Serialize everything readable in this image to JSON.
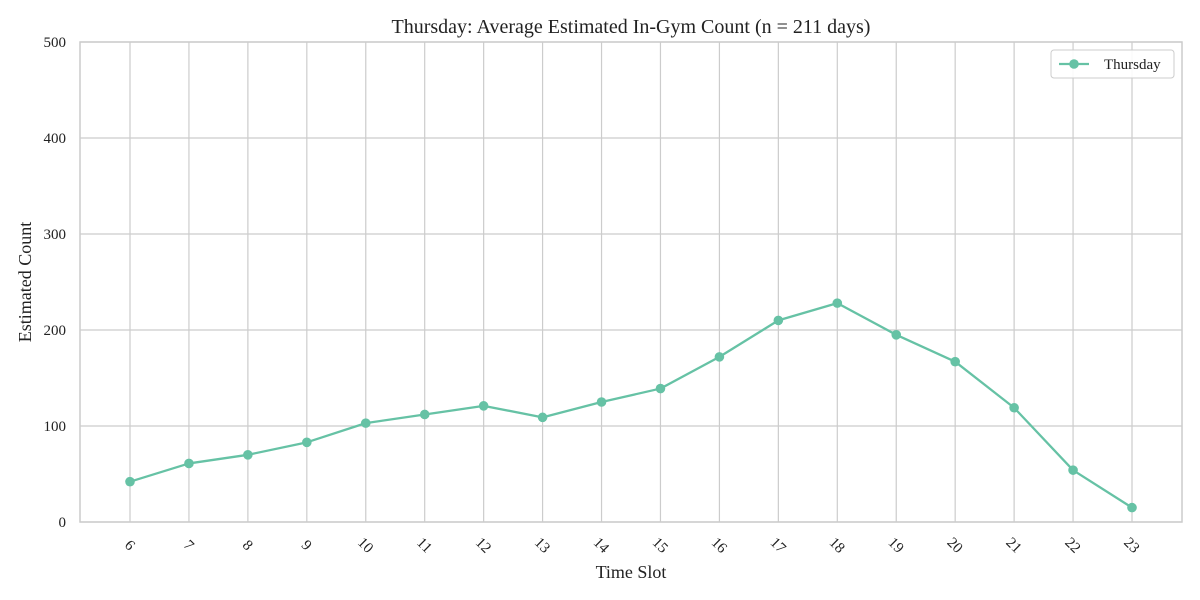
{
  "chart_data": {
    "type": "line",
    "title": "Thursday: Average Estimated In-Gym Count (n = 211 days)",
    "xlabel": "Time Slot",
    "ylabel": "Estimated Count",
    "x": [
      "6",
      "7",
      "8",
      "9",
      "10",
      "11",
      "12",
      "13",
      "14",
      "15",
      "16",
      "17",
      "18",
      "19",
      "20",
      "21",
      "22",
      "23"
    ],
    "series": [
      {
        "name": "Thursday",
        "color": "#66c2a5",
        "values": [
          42,
          61,
          70,
          83,
          103,
          112,
          121,
          109,
          125,
          139,
          172,
          210,
          228,
          195,
          167,
          119,
          54,
          15
        ]
      }
    ],
    "ylim": [
      0,
      500
    ],
    "yticks": [
      "0",
      "100",
      "200",
      "300",
      "400",
      "500"
    ],
    "grid": true,
    "legend_position": "top-right"
  }
}
